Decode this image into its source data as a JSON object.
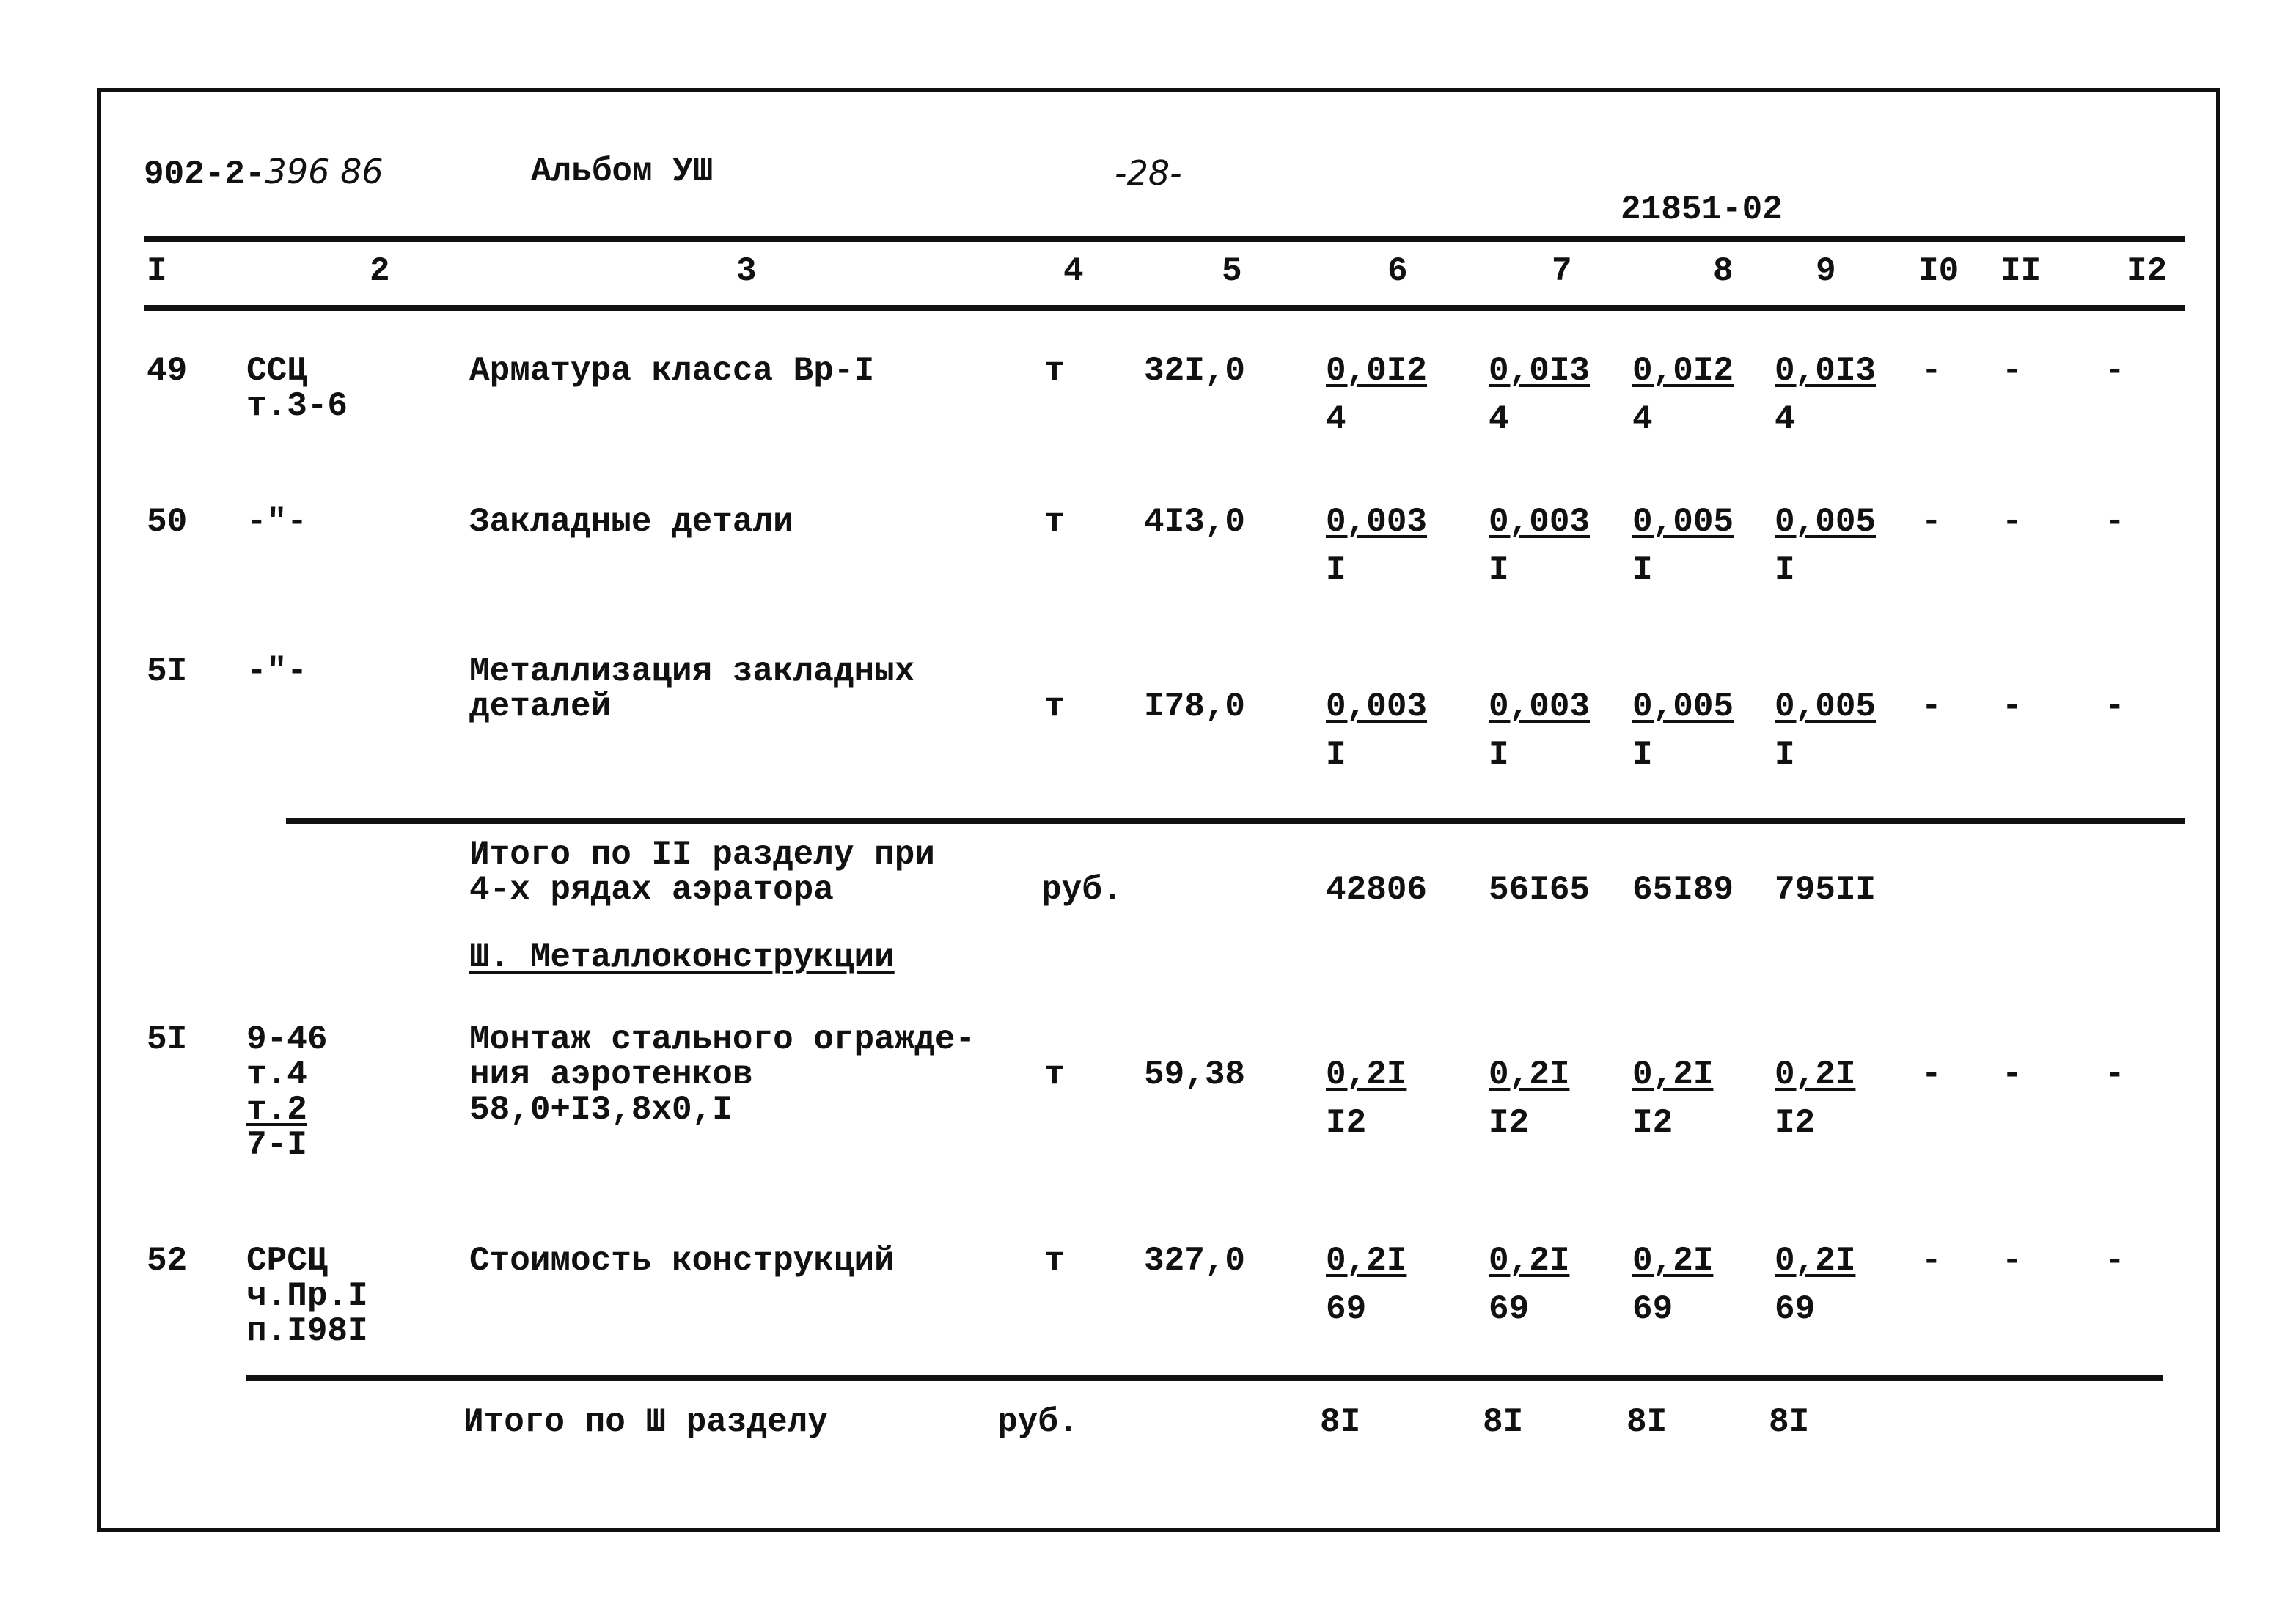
{
  "header": {
    "doc_code": "902-2-",
    "doc_code_hand": "396 86",
    "album": "Альбом УШ",
    "page": "-28-",
    "stamp": "21851-02"
  },
  "columns": [
    "I",
    "2",
    "3",
    "4",
    "5",
    "6",
    "7",
    "8",
    "9",
    "I0",
    "II",
    "I2"
  ],
  "rows": [
    {
      "num": "49",
      "ref": [
        "ССЦ",
        "т.3-6"
      ],
      "name": [
        "Арматура класса Вр-I"
      ],
      "unit": "т",
      "qty": "32I,0",
      "vals": [
        [
          "0,0I2",
          "4"
        ],
        [
          "0,0I3",
          "4"
        ],
        [
          "0,0I2",
          "4"
        ],
        [
          "0,0I3",
          "4"
        ]
      ],
      "dashes": [
        "-",
        "-",
        "-"
      ]
    },
    {
      "num": "50",
      "ref": [
        "-\"-"
      ],
      "name": [
        "Закладные детали"
      ],
      "unit": "т",
      "qty": "4I3,0",
      "vals": [
        [
          "0,003",
          "I"
        ],
        [
          "0,003",
          "I"
        ],
        [
          "0,005",
          "I"
        ],
        [
          "0,005",
          "I"
        ]
      ],
      "dashes": [
        "-",
        "-",
        "-"
      ]
    },
    {
      "num": "5I",
      "ref": [
        "-\"-"
      ],
      "name": [
        "Металлизация закладных",
        "деталей"
      ],
      "unit": "т",
      "qty": "I78,0",
      "vals": [
        [
          "0,003",
          "I"
        ],
        [
          "0,003",
          "I"
        ],
        [
          "0,005",
          "I"
        ],
        [
          "0,005",
          "I"
        ]
      ],
      "dashes": [
        "-",
        "-",
        "-"
      ]
    }
  ],
  "total_2": {
    "name": [
      "Итого по II разделу при",
      "4-х рядах аэратора"
    ],
    "unit": "руб.",
    "vals": [
      "42806",
      "56I65",
      "65I89",
      "795II"
    ]
  },
  "section_3_title": "Ш. Металлоконструкции",
  "rows_3": [
    {
      "num": "5I",
      "ref": [
        "9-46",
        "т.4",
        "т.2",
        "7-I"
      ],
      "name": [
        "Монтаж стального огражде-",
        "ния аэротенков",
        "58,0+I3,8х0,I"
      ],
      "unit": "т",
      "qty": "59,38",
      "vals": [
        [
          "0,2I",
          "I2"
        ],
        [
          "0,2I",
          "I2"
        ],
        [
          "0,2I",
          "I2"
        ],
        [
          "0,2I",
          "I2"
        ]
      ],
      "dashes": [
        "-",
        "-",
        "-"
      ]
    },
    {
      "num": "52",
      "ref": [
        "СРСЦ",
        "ч.Пр.I",
        "п.I98I"
      ],
      "name": [
        "Стоимость конструкций"
      ],
      "unit": "т",
      "qty": "327,0",
      "vals": [
        [
          "0,2I",
          "69"
        ],
        [
          "0,2I",
          "69"
        ],
        [
          "0,2I",
          "69"
        ],
        [
          "0,2I",
          "69"
        ]
      ],
      "dashes": [
        "-",
        "-",
        "-"
      ]
    }
  ],
  "total_3": {
    "name": "Итого по Ш разделу",
    "unit": "руб.",
    "vals": [
      "8I",
      "8I",
      "8I",
      "8I"
    ]
  }
}
